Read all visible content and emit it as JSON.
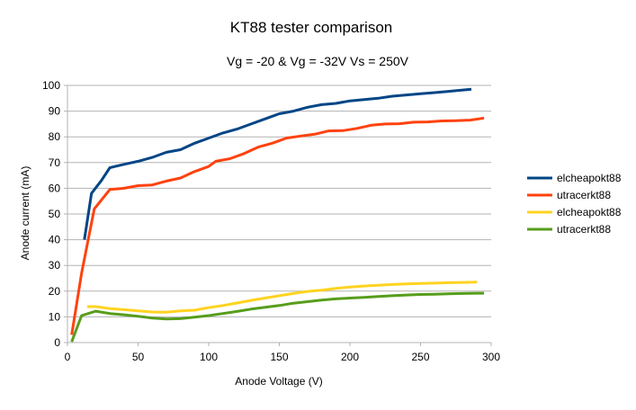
{
  "chart_data": {
    "type": "line",
    "title": "KT88 tester comparison",
    "subtitle": "Vg = -20 & Vg = -32V Vs = 250V",
    "xlabel": "Anode Voltage (V)",
    "ylabel": "Anode current (mA)",
    "xlim": [
      0,
      300
    ],
    "ylim": [
      0,
      100
    ],
    "xticks": [
      0,
      50,
      100,
      150,
      200,
      250,
      300
    ],
    "yticks": [
      0,
      10,
      20,
      30,
      40,
      50,
      60,
      70,
      80,
      90,
      100
    ],
    "grid": "horizontal",
    "legend_position": "right",
    "series": [
      {
        "name": "elcheapokt88",
        "color": "#004586",
        "points": [
          [
            12,
            40
          ],
          [
            17,
            58
          ],
          [
            24,
            63
          ],
          [
            30,
            68
          ],
          [
            40,
            69.3
          ],
          [
            50,
            70.5
          ],
          [
            60,
            72
          ],
          [
            70,
            74
          ],
          [
            80,
            75
          ],
          [
            90,
            77.5
          ],
          [
            100,
            79.5
          ],
          [
            110,
            81.5
          ],
          [
            120,
            83
          ],
          [
            130,
            85
          ],
          [
            140,
            87
          ],
          [
            150,
            89
          ],
          [
            160,
            90
          ],
          [
            170,
            91.5
          ],
          [
            180,
            92.5
          ],
          [
            190,
            93
          ],
          [
            200,
            94
          ],
          [
            210,
            94.5
          ],
          [
            220,
            95
          ],
          [
            230,
            95.8
          ],
          [
            240,
            96.3
          ],
          [
            250,
            96.8
          ],
          [
            260,
            97.2
          ],
          [
            270,
            97.7
          ],
          [
            280,
            98.2
          ],
          [
            286,
            98.5
          ]
        ]
      },
      {
        "name": "utracerkt88",
        "color": "#ff420e",
        "points": [
          [
            3,
            3
          ],
          [
            10,
            27
          ],
          [
            19,
            52
          ],
          [
            30,
            59.5
          ],
          [
            40,
            60
          ],
          [
            50,
            61
          ],
          [
            60,
            61.3
          ],
          [
            70,
            62.8
          ],
          [
            80,
            64
          ],
          [
            90,
            66.5
          ],
          [
            100,
            68.5
          ],
          [
            105,
            70.5
          ],
          [
            115,
            71.5
          ],
          [
            125,
            73.5
          ],
          [
            135,
            76
          ],
          [
            145,
            77.5
          ],
          [
            155,
            79.5
          ],
          [
            165,
            80.3
          ],
          [
            175,
            81
          ],
          [
            185,
            82.3
          ],
          [
            195,
            82.4
          ],
          [
            205,
            83.3
          ],
          [
            215,
            84.5
          ],
          [
            225,
            85
          ],
          [
            235,
            85.1
          ],
          [
            245,
            85.7
          ],
          [
            255,
            85.8
          ],
          [
            265,
            86.2
          ],
          [
            275,
            86.3
          ],
          [
            285,
            86.5
          ],
          [
            295,
            87.3
          ]
        ]
      },
      {
        "name": "elcheapokt88",
        "color": "#ffd320",
        "points": [
          [
            14,
            14
          ],
          [
            20,
            14
          ],
          [
            30,
            13.2
          ],
          [
            40,
            12.8
          ],
          [
            50,
            12.3
          ],
          [
            60,
            11.9
          ],
          [
            70,
            11.8
          ],
          [
            80,
            12.3
          ],
          [
            90,
            12.6
          ],
          [
            100,
            13.6
          ],
          [
            110,
            14.4
          ],
          [
            120,
            15.4
          ],
          [
            130,
            16.4
          ],
          [
            140,
            17.3
          ],
          [
            150,
            18.2
          ],
          [
            160,
            19.1
          ],
          [
            170,
            19.9
          ],
          [
            180,
            20.4
          ],
          [
            190,
            21.1
          ],
          [
            200,
            21.6
          ],
          [
            210,
            22
          ],
          [
            220,
            22.3
          ],
          [
            230,
            22.6
          ],
          [
            240,
            22.8
          ],
          [
            250,
            23
          ],
          [
            260,
            23.1
          ],
          [
            270,
            23.3
          ],
          [
            280,
            23.4
          ],
          [
            290,
            23.5
          ]
        ]
      },
      {
        "name": "utracerkt88",
        "color": "#579d1c",
        "points": [
          [
            3,
            0.3
          ],
          [
            10,
            10.5
          ],
          [
            20,
            12.2
          ],
          [
            30,
            11.3
          ],
          [
            40,
            10.8
          ],
          [
            50,
            10.2
          ],
          [
            60,
            9.5
          ],
          [
            70,
            9.2
          ],
          [
            80,
            9.3
          ],
          [
            90,
            9.9
          ],
          [
            100,
            10.5
          ],
          [
            110,
            11.3
          ],
          [
            120,
            12.1
          ],
          [
            130,
            13
          ],
          [
            140,
            13.7
          ],
          [
            150,
            14.4
          ],
          [
            160,
            15.3
          ],
          [
            170,
            15.9
          ],
          [
            180,
            16.5
          ],
          [
            190,
            17
          ],
          [
            200,
            17.3
          ],
          [
            210,
            17.6
          ],
          [
            220,
            17.9
          ],
          [
            230,
            18.2
          ],
          [
            240,
            18.5
          ],
          [
            250,
            18.7
          ],
          [
            260,
            18.8
          ],
          [
            270,
            19
          ],
          [
            280,
            19.1
          ],
          [
            290,
            19.2
          ],
          [
            295,
            19.2
          ]
        ]
      }
    ]
  }
}
